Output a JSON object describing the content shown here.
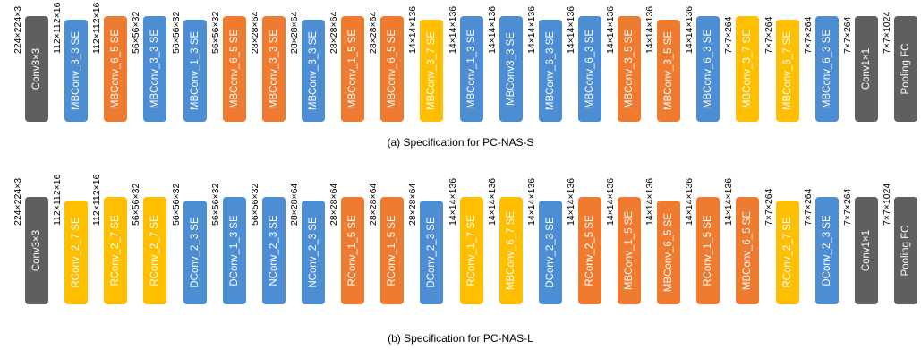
{
  "colors": {
    "Conv": "#5f5f5f",
    "MBConv_3": "#4c8dd4",
    "MBConv_6": "#ee7b30",
    "MBConv_3_7": "#ffbf00",
    "RConv": "#ffbf00",
    "DConv": "#4c8dd4",
    "NConv": "#4c8dd4",
    "Pooling": "#5f5f5f"
  },
  "diagram_s": {
    "caption": "(a) Specification for PC-NAS-S",
    "blocks": [
      {
        "label": "Conv3×3",
        "color_key": "Conv",
        "dim_before": "224×224×3"
      },
      {
        "label": "MBConv_3_3 SE",
        "color_key": "MBConv_3",
        "dim_before": "112×112×16"
      },
      {
        "label": "MBConv_6_5 SE",
        "color_key": "MBConv_6",
        "dim_before": "112×112×16"
      },
      {
        "label": "MBConv_3_3 SE",
        "color_key": "MBConv_3",
        "dim_before": "56×56×32"
      },
      {
        "label": "MBConv_1_3 SE",
        "color_key": "MBConv_3",
        "dim_before": "56×56×32"
      },
      {
        "label": "MBConv_6_5 SE",
        "color_key": "MBConv_6",
        "dim_before": "56×56×32"
      },
      {
        "label": "MBConv_3_3 SE",
        "color_key": "MBConv_6",
        "dim_before": "28×28×64"
      },
      {
        "label": "MBConv_3_3 SE",
        "color_key": "MBConv_3",
        "dim_before": "28×28×64"
      },
      {
        "label": "MBConv_1_5 SE",
        "color_key": "MBConv_6",
        "dim_before": "28×28×64"
      },
      {
        "label": "MBConv_6_5 SE",
        "color_key": "MBConv_6",
        "dim_before": "28×28×64"
      },
      {
        "label": "MBConv_3_7 SE",
        "color_key": "MBConv_3_7",
        "dim_before": "14×14×136"
      },
      {
        "label": "MBConv_1_3 SE",
        "color_key": "MBConv_3",
        "dim_before": "14×14×136"
      },
      {
        "label": "MBConv3_3 SE",
        "color_key": "MBConv_3",
        "dim_before": "14×14×136"
      },
      {
        "label": "MBConv_6_3 SE",
        "color_key": "MBConv_3",
        "dim_before": "14×14×136"
      },
      {
        "label": "MBConv_6_3 SE",
        "color_key": "MBConv_3",
        "dim_before": "14×14×136"
      },
      {
        "label": "MBConv_3_5 SE",
        "color_key": "MBConv_6",
        "dim_before": "14×14×136"
      },
      {
        "label": "MBConv_3_5 SE",
        "color_key": "MBConv_6",
        "dim_before": "14×14×136"
      },
      {
        "label": "MBConv_6_3 SE",
        "color_key": "MBConv_3",
        "dim_before": "14×14×136"
      },
      {
        "label": "MBConv_3_7 SE",
        "color_key": "MBConv_3_7",
        "dim_before": "7×7×264"
      },
      {
        "label": "MBConv_6_7 SE",
        "color_key": "MBConv_3_7",
        "dim_before": "7×7×264"
      },
      {
        "label": "MBConv_6_3 SE",
        "color_key": "MBConv_3",
        "dim_before": "7×7×264"
      },
      {
        "label": "Conv1×1",
        "color_key": "Conv",
        "dim_before": "7×7×264"
      },
      {
        "label": "Pooling FC",
        "color_key": "Pooling",
        "dim_before": "7×7×1024"
      }
    ]
  },
  "diagram_l": {
    "caption": "(b) Specification for PC-NAS-L",
    "blocks": [
      {
        "label": "Conv3×3",
        "color_key": "Conv",
        "dim_before": "224×224×3"
      },
      {
        "label": "RConv_2_7 SE",
        "color_key": "RConv",
        "dim_before": "112×112×16"
      },
      {
        "label": "RConv_2_7 SE",
        "color_key": "RConv",
        "dim_before": "112×112×16"
      },
      {
        "label": "RConv_2_7 SE",
        "color_key": "RConv",
        "dim_before": "56×56×32"
      },
      {
        "label": "DConv_2_3 SE",
        "color_key": "DConv",
        "dim_before": "56×56×32"
      },
      {
        "label": "DConv_1_3 SE",
        "color_key": "DConv",
        "dim_before": "56×56×32"
      },
      {
        "label": "NConv_2_3 SE",
        "color_key": "NConv",
        "dim_before": "56×56×32"
      },
      {
        "label": "NConv_2_3 SE",
        "color_key": "NConv",
        "dim_before": "28×28×64"
      },
      {
        "label": "RConv_1_5 SE",
        "color_key": "MBConv_6",
        "dim_before": "28×28×64"
      },
      {
        "label": "RConv_1_5 SE",
        "color_key": "MBConv_6",
        "dim_before": "28×28×64"
      },
      {
        "label": "DConv_2_3 SE",
        "color_key": "DConv",
        "dim_before": "28×28×64"
      },
      {
        "label": "RConv_1_7 SE",
        "color_key": "RConv",
        "dim_before": "14×14×136"
      },
      {
        "label": "MBConv_6_7 SE",
        "color_key": "RConv",
        "dim_before": "14×14×136"
      },
      {
        "label": "DConv_2_3 SE",
        "color_key": "DConv",
        "dim_before": "14×14×136"
      },
      {
        "label": "RConv_2_5 SE",
        "color_key": "MBConv_6",
        "dim_before": "14×14×136"
      },
      {
        "label": "MBConv_1_5 SE",
        "color_key": "MBConv_6",
        "dim_before": "14×14×136"
      },
      {
        "label": "MBConv_6_5 SE",
        "color_key": "MBConv_6",
        "dim_before": "14×14×136"
      },
      {
        "label": "RConv_1_5 SE",
        "color_key": "MBConv_6",
        "dim_before": "14×14×136"
      },
      {
        "label": "MBConv_6_5 SE",
        "color_key": "MBConv_6",
        "dim_before": "14×14×136"
      },
      {
        "label": "RConv_2_7 SE",
        "color_key": "RConv",
        "dim_before": "7×7×264"
      },
      {
        "label": "DConv_2_3 SE",
        "color_key": "DConv",
        "dim_before": "7×7×264"
      },
      {
        "label": "Conv1×1",
        "color_key": "Conv",
        "dim_before": "7×7×264"
      },
      {
        "label": "Pooling FC",
        "color_key": "Pooling",
        "dim_before": "7×7×1024"
      }
    ]
  }
}
